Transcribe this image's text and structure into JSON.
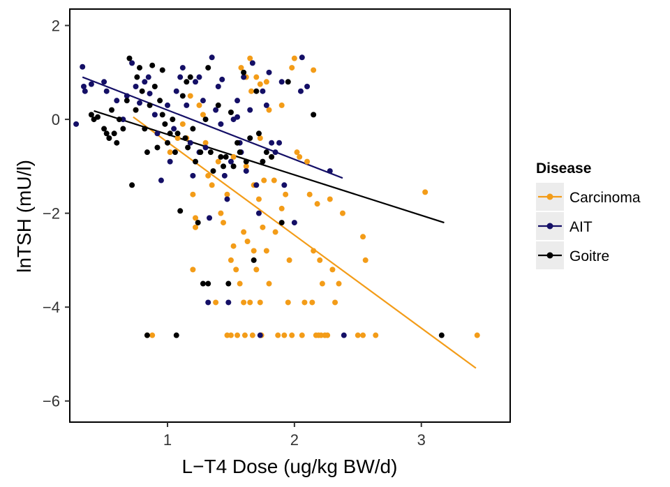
{
  "chart_data": {
    "type": "scatter",
    "xlabel": "L−T4 Dose (ug/kg BW/d)",
    "ylabel": "lnTSH (mU/l)",
    "xlim": [
      0.23,
      3.7
    ],
    "ylim": [
      -6.45,
      2.35
    ],
    "xticks": [
      1,
      2,
      3
    ],
    "yticks": [
      -6,
      -4,
      -2,
      0,
      2
    ],
    "xtick_labels": [
      "1",
      "2",
      "3"
    ],
    "ytick_labels": [
      "−6",
      "−4",
      "−2",
      "0",
      "2"
    ],
    "grid": false,
    "legend": {
      "title": "Disease",
      "position": "right"
    },
    "series": [
      {
        "name": "Carcinoma",
        "color": "#f39c18",
        "fit": [
          [
            0.73,
            0.05
          ],
          [
            3.43,
            -5.3
          ]
        ],
        "points": [
          [
            0.84,
            -4.6
          ],
          [
            0.88,
            -4.6
          ],
          [
            0.75,
            0.2
          ],
          [
            1.02,
            -0.7
          ],
          [
            1.08,
            -0.4
          ],
          [
            1.12,
            -0.1
          ],
          [
            1.15,
            -0.4
          ],
          [
            1.18,
            0.5
          ],
          [
            1.2,
            -1.6
          ],
          [
            1.22,
            -2.1
          ],
          [
            1.22,
            -2.3
          ],
          [
            1.2,
            -3.2
          ],
          [
            1.25,
            0.3
          ],
          [
            1.28,
            0.1
          ],
          [
            1.3,
            -0.5
          ],
          [
            1.32,
            -1.2
          ],
          [
            1.35,
            -1.4
          ],
          [
            1.38,
            -3.9
          ],
          [
            1.4,
            -0.9
          ],
          [
            1.42,
            -2.0
          ],
          [
            1.44,
            -2.2
          ],
          [
            1.47,
            -1.6
          ],
          [
            1.47,
            -4.6
          ],
          [
            1.5,
            -3.0
          ],
          [
            1.5,
            -4.6
          ],
          [
            1.52,
            -0.8
          ],
          [
            1.52,
            -2.7
          ],
          [
            1.54,
            -3.2
          ],
          [
            1.55,
            -4.6
          ],
          [
            1.57,
            -3.5
          ],
          [
            1.58,
            1.1
          ],
          [
            1.6,
            -2.4
          ],
          [
            1.6,
            -3.9
          ],
          [
            1.61,
            -4.6
          ],
          [
            1.62,
            -1.0
          ],
          [
            1.63,
            -2.6
          ],
          [
            1.65,
            -3.9
          ],
          [
            1.65,
            1.3
          ],
          [
            1.66,
            0.6
          ],
          [
            1.67,
            -4.6
          ],
          [
            1.68,
            -1.4
          ],
          [
            1.68,
            -2.8
          ],
          [
            1.7,
            0.9
          ],
          [
            1.7,
            -3.2
          ],
          [
            1.72,
            -1.7
          ],
          [
            1.73,
            -0.4
          ],
          [
            1.73,
            -3.9
          ],
          [
            1.74,
            -4.6
          ],
          [
            1.75,
            -2.3
          ],
          [
            1.76,
            -1.3
          ],
          [
            1.78,
            -2.8
          ],
          [
            1.8,
            0.2
          ],
          [
            1.8,
            -3.5
          ],
          [
            1.82,
            -0.8
          ],
          [
            1.84,
            -1.3
          ],
          [
            1.85,
            -2.4
          ],
          [
            1.87,
            -4.6
          ],
          [
            1.9,
            -1.9
          ],
          [
            1.92,
            -4.6
          ],
          [
            1.93,
            -1.6
          ],
          [
            1.95,
            -3.9
          ],
          [
            1.96,
            -3.0
          ],
          [
            1.98,
            -4.6
          ],
          [
            1.98,
            1.1
          ],
          [
            2.0,
            1.3
          ],
          [
            2.02,
            -0.7
          ],
          [
            2.04,
            -0.8
          ],
          [
            2.06,
            -4.6
          ],
          [
            2.08,
            -3.9
          ],
          [
            2.1,
            -0.9
          ],
          [
            2.12,
            -1.6
          ],
          [
            2.14,
            -3.9
          ],
          [
            2.15,
            -2.8
          ],
          [
            2.15,
            1.05
          ],
          [
            2.17,
            -4.6
          ],
          [
            2.18,
            -1.8
          ],
          [
            2.19,
            -4.6
          ],
          [
            2.2,
            -3.0
          ],
          [
            2.21,
            -4.6
          ],
          [
            2.22,
            -3.5
          ],
          [
            2.24,
            -4.6
          ],
          [
            2.26,
            -4.6
          ],
          [
            2.28,
            -1.7
          ],
          [
            2.3,
            -3.2
          ],
          [
            2.32,
            -3.9
          ],
          [
            2.35,
            -3.5
          ],
          [
            2.38,
            -2.0
          ],
          [
            2.5,
            -4.6
          ],
          [
            2.54,
            -2.5
          ],
          [
            2.54,
            -4.6
          ],
          [
            2.56,
            -3.0
          ],
          [
            2.64,
            -4.6
          ],
          [
            3.03,
            -1.55
          ],
          [
            3.44,
            -4.6
          ],
          [
            1.9,
            0.3
          ],
          [
            1.78,
            0.8
          ],
          [
            1.62,
            0.9
          ],
          [
            1.73,
            0.75
          ]
        ]
      },
      {
        "name": "AIT",
        "color": "#140f66",
        "fit": [
          [
            0.33,
            0.9
          ],
          [
            2.38,
            -1.25
          ]
        ],
        "points": [
          [
            0.28,
            -0.1
          ],
          [
            0.33,
            1.12
          ],
          [
            0.34,
            0.7
          ],
          [
            0.35,
            0.6
          ],
          [
            0.4,
            0.75
          ],
          [
            0.5,
            0.8
          ],
          [
            0.52,
            0.6
          ],
          [
            0.6,
            0.4
          ],
          [
            0.65,
            0.0
          ],
          [
            0.68,
            0.5
          ],
          [
            0.72,
            1.2
          ],
          [
            0.75,
            0.7
          ],
          [
            0.78,
            0.35
          ],
          [
            0.82,
            0.8
          ],
          [
            0.86,
            0.55
          ],
          [
            0.9,
            0.1
          ],
          [
            0.92,
            -0.3
          ],
          [
            0.95,
            -1.3
          ],
          [
            1.0,
            0.3
          ],
          [
            1.02,
            -0.9
          ],
          [
            1.05,
            -0.2
          ],
          [
            1.07,
            0.6
          ],
          [
            1.1,
            0.9
          ],
          [
            1.12,
            1.1
          ],
          [
            1.15,
            0.3
          ],
          [
            1.18,
            -0.5
          ],
          [
            1.2,
            -1.2
          ],
          [
            1.22,
            0.8
          ],
          [
            1.25,
            -0.7
          ],
          [
            1.28,
            0.4
          ],
          [
            1.3,
            -0.6
          ],
          [
            1.32,
            -3.9
          ],
          [
            1.33,
            -2.1
          ],
          [
            1.35,
            1.32
          ],
          [
            1.38,
            0.2
          ],
          [
            1.4,
            0.7
          ],
          [
            1.42,
            -0.1
          ],
          [
            1.45,
            -1.2
          ],
          [
            1.47,
            -1.7
          ],
          [
            1.48,
            -3.9
          ],
          [
            1.5,
            -0.9
          ],
          [
            1.52,
            0.0
          ],
          [
            1.55,
            0.4
          ],
          [
            1.57,
            -0.5
          ],
          [
            1.58,
            -0.7
          ],
          [
            1.6,
            0.9
          ],
          [
            1.62,
            -1.1
          ],
          [
            1.65,
            0.2
          ],
          [
            1.67,
            1.2
          ],
          [
            1.7,
            -1.4
          ],
          [
            1.72,
            -2.0
          ],
          [
            1.73,
            -4.6
          ],
          [
            1.75,
            0.6
          ],
          [
            1.78,
            0.3
          ],
          [
            1.8,
            1.0
          ],
          [
            1.82,
            -0.5
          ],
          [
            1.85,
            -0.7
          ],
          [
            1.88,
            -0.5
          ],
          [
            1.9,
            0.8
          ],
          [
            1.92,
            -1.4
          ],
          [
            2.0,
            -2.2
          ],
          [
            2.05,
            0.6
          ],
          [
            2.06,
            1.32
          ],
          [
            2.1,
            0.7
          ],
          [
            2.28,
            -1.1
          ],
          [
            2.39,
            -4.6
          ],
          [
            1.25,
            0.9
          ],
          [
            0.85,
            0.9
          ],
          [
            1.55,
            0.05
          ],
          [
            1.43,
            0.85
          ]
        ]
      },
      {
        "name": "Goitre",
        "color": "#000000",
        "fit": [
          [
            0.42,
            0.18
          ],
          [
            3.18,
            -2.2
          ]
        ],
        "points": [
          [
            0.4,
            0.1
          ],
          [
            0.42,
            0.0
          ],
          [
            0.45,
            0.05
          ],
          [
            0.5,
            -0.2
          ],
          [
            0.52,
            -0.3
          ],
          [
            0.54,
            -0.4
          ],
          [
            0.56,
            0.2
          ],
          [
            0.58,
            -0.3
          ],
          [
            0.6,
            -0.5
          ],
          [
            0.62,
            0.0
          ],
          [
            0.65,
            -0.2
          ],
          [
            0.68,
            0.4
          ],
          [
            0.7,
            1.3
          ],
          [
            0.72,
            -1.4
          ],
          [
            0.75,
            0.2
          ],
          [
            0.78,
            1.1
          ],
          [
            0.8,
            0.6
          ],
          [
            0.82,
            -0.2
          ],
          [
            0.84,
            -0.7
          ],
          [
            0.84,
            -4.6
          ],
          [
            0.86,
            0.3
          ],
          [
            0.88,
            1.15
          ],
          [
            0.9,
            0.7
          ],
          [
            0.92,
            -0.6
          ],
          [
            0.94,
            0.4
          ],
          [
            0.96,
            0.1
          ],
          [
            0.98,
            -0.1
          ],
          [
            1.0,
            -0.5
          ],
          [
            1.02,
            -0.3
          ],
          [
            1.04,
            0.0
          ],
          [
            1.06,
            -0.7
          ],
          [
            1.07,
            -4.6
          ],
          [
            1.08,
            -0.3
          ],
          [
            1.1,
            -1.95
          ],
          [
            1.12,
            0.5
          ],
          [
            1.14,
            -0.4
          ],
          [
            1.16,
            -0.6
          ],
          [
            1.18,
            0.9
          ],
          [
            1.2,
            -0.2
          ],
          [
            1.22,
            -0.9
          ],
          [
            1.24,
            -2.2
          ],
          [
            1.26,
            -0.7
          ],
          [
            1.28,
            -3.5
          ],
          [
            1.3,
            0.0
          ],
          [
            1.32,
            -3.5
          ],
          [
            1.34,
            -0.7
          ],
          [
            1.36,
            -1.1
          ],
          [
            1.4,
            0.3
          ],
          [
            1.42,
            -0.8
          ],
          [
            1.44,
            -1.0
          ],
          [
            1.46,
            -0.8
          ],
          [
            1.48,
            -3.5
          ],
          [
            1.5,
            0.15
          ],
          [
            1.52,
            -1.0
          ],
          [
            1.55,
            -0.5
          ],
          [
            1.57,
            -0.7
          ],
          [
            1.6,
            1.0
          ],
          [
            1.62,
            -0.9
          ],
          [
            1.65,
            -0.4
          ],
          [
            1.68,
            -3.0
          ],
          [
            1.7,
            0.6
          ],
          [
            1.72,
            -0.3
          ],
          [
            1.75,
            -0.9
          ],
          [
            1.78,
            -0.7
          ],
          [
            1.82,
            -0.8
          ],
          [
            1.9,
            -2.2
          ],
          [
            1.95,
            0.8
          ],
          [
            2.15,
            0.1
          ],
          [
            3.16,
            -4.6
          ],
          [
            0.76,
            0.9
          ],
          [
            0.96,
            1.05
          ],
          [
            1.15,
            0.8
          ],
          [
            1.32,
            1.1
          ]
        ]
      }
    ]
  }
}
